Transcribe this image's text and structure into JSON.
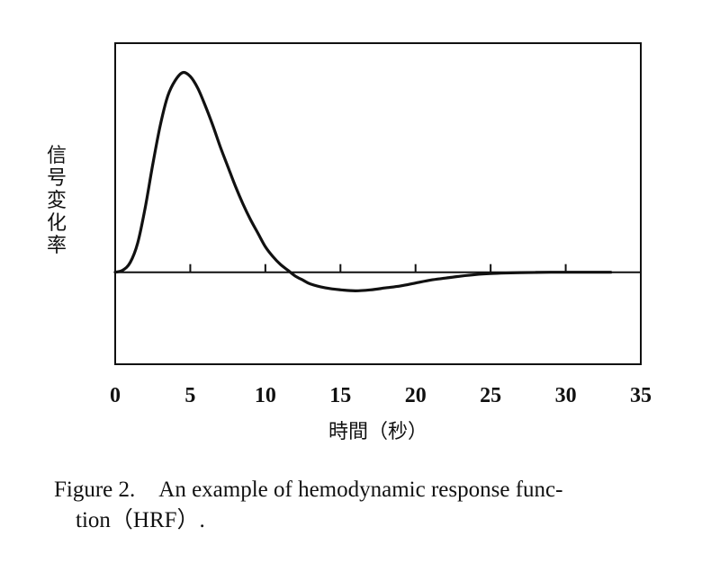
{
  "chart_data": {
    "type": "line",
    "title": "",
    "xlabel": "時間（秒）",
    "ylabel": "信号変化率",
    "xlim": [
      0,
      35
    ],
    "ylim": [
      -0.47,
      1.17
    ],
    "x_ticks": [
      0,
      5,
      10,
      15,
      20,
      25,
      30,
      35
    ],
    "x_tick_labels": [
      "0",
      "5",
      "10",
      "15",
      "20",
      "25",
      "30",
      "35"
    ],
    "baseline": 0,
    "grid": false,
    "line_color": "#111111",
    "series": [
      {
        "x": [
          0,
          0.5,
          1,
          1.5,
          2,
          2.5,
          3,
          3.5,
          4,
          4.5,
          5,
          5.5,
          6,
          6.5,
          7,
          7.5,
          8,
          8.5,
          9,
          9.5,
          10,
          10.5,
          11,
          11.5,
          12,
          12.5,
          13,
          14,
          15,
          16,
          17,
          18,
          19,
          20,
          21,
          22,
          23,
          24,
          25,
          26,
          27,
          28,
          29,
          30,
          31,
          32,
          33
        ],
        "y": [
          0,
          0.01,
          0.05,
          0.15,
          0.33,
          0.55,
          0.75,
          0.9,
          0.98,
          1.02,
          1.0,
          0.94,
          0.85,
          0.75,
          0.64,
          0.54,
          0.44,
          0.35,
          0.27,
          0.2,
          0.13,
          0.08,
          0.04,
          0.01,
          -0.02,
          -0.04,
          -0.06,
          -0.08,
          -0.09,
          -0.095,
          -0.09,
          -0.08,
          -0.07,
          -0.055,
          -0.04,
          -0.03,
          -0.02,
          -0.012,
          -0.007,
          -0.004,
          -0.002,
          -0.001,
          0,
          0,
          0,
          0,
          0
        ]
      }
    ]
  },
  "caption": {
    "label": "Figure 2.",
    "text_line1": "An example of hemodynamic response func-",
    "text_line2": "tion（HRF）."
  }
}
